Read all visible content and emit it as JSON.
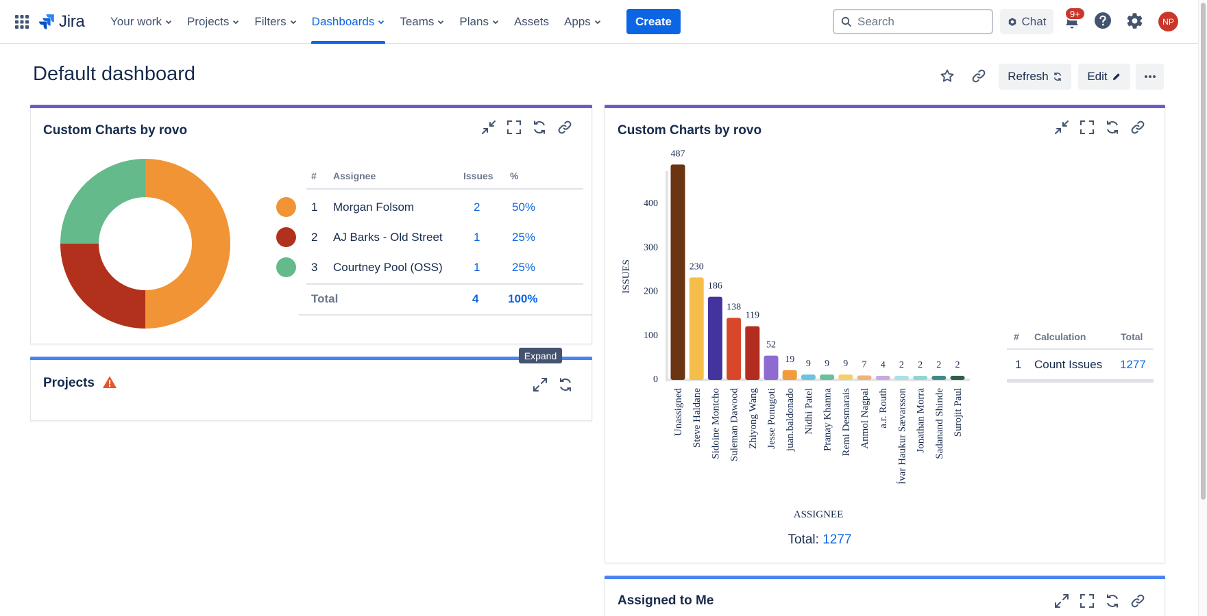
{
  "nav": {
    "logo": "Jira",
    "items": [
      {
        "label": "Your work",
        "chevron": true
      },
      {
        "label": "Projects",
        "chevron": true
      },
      {
        "label": "Filters",
        "chevron": true
      },
      {
        "label": "Dashboards",
        "chevron": true,
        "active": true
      },
      {
        "label": "Teams",
        "chevron": true
      },
      {
        "label": "Plans",
        "chevron": true
      },
      {
        "label": "Assets",
        "chevron": false
      },
      {
        "label": "Apps",
        "chevron": true
      }
    ],
    "create_label": "Create",
    "search_placeholder": "Search",
    "chat_label": "Chat",
    "notification_badge": "9+",
    "avatar_initials": "NP"
  },
  "page": {
    "title": "Default dashboard",
    "refresh_label": "Refresh",
    "edit_label": "Edit"
  },
  "gadget_donut": {
    "title": "Custom Charts by rovo",
    "headers": {
      "num": "#",
      "assignee": "Assignee",
      "issues": "Issues",
      "pct": "%"
    },
    "rows": [
      {
        "num": "1",
        "assignee": "Morgan Folsom",
        "issues": "2",
        "pct": "50%",
        "color": "#f09436"
      },
      {
        "num": "2",
        "assignee": "AJ Barks - Old Street",
        "issues": "1",
        "pct": "25%",
        "color": "#b1311c"
      },
      {
        "num": "3",
        "assignee": "Courtney Pool (OSS)",
        "issues": "1",
        "pct": "25%",
        "color": "#64ba8a"
      }
    ],
    "total_label": "Total",
    "total_issues": "4",
    "total_pct": "100%"
  },
  "gadget_projects": {
    "title": "Projects",
    "tooltip": "Expand"
  },
  "gadget_bars": {
    "title": "Custom Charts by rovo",
    "calc_headers": {
      "num": "#",
      "calc": "Calculation",
      "total": "Total"
    },
    "calc_row": {
      "num": "1",
      "calc": "Count Issues",
      "total": "1277"
    },
    "total_label": "Total:",
    "total_value": "1277"
  },
  "gadget_assigned": {
    "title": "Assigned to Me"
  },
  "chart_data": [
    {
      "type": "pie",
      "title": "",
      "categories": [
        "Morgan Folsom",
        "AJ Barks - Old Street",
        "Courtney Pool (OSS)"
      ],
      "values": [
        2,
        1,
        1
      ],
      "colors": [
        "#f09436",
        "#b1311c",
        "#64ba8a"
      ]
    },
    {
      "type": "bar",
      "title": "",
      "xlabel": "ASSIGNEE",
      "ylabel": "ISSUES",
      "ylim": [
        0,
        500
      ],
      "yticks": [
        0,
        100,
        200,
        300,
        400
      ],
      "categories": [
        "Unassigned",
        "Steve Haldane",
        "Sidoine Montcho",
        "Suleman Dawood",
        "Zhiyong Wang",
        "Jesse Ponugoti",
        "juan.baldonado",
        "Nidhi Patel",
        "Pranay Khanna",
        "Remi Desmarais",
        "Anmol Nagpal",
        "a.r. Routh",
        "Ívar Haukur Sævarsson",
        "Jonathan Morra",
        "Sadanand Shinde",
        "Surojit Paul"
      ],
      "values": [
        487,
        230,
        186,
        138,
        119,
        52,
        19,
        9,
        9,
        9,
        7,
        4,
        2,
        2,
        2,
        2
      ],
      "colors": [
        "#6b3513",
        "#f5be4a",
        "#43339c",
        "#d9472a",
        "#b22d1f",
        "#8e6bd0",
        "#f39a3b",
        "#6cc3e0",
        "#6bc19a",
        "#f5cf6a",
        "#f3b27a",
        "#c9a9e0",
        "#a7e2e8",
        "#8fd6cf",
        "#3f8a8a",
        "#2f5c4a"
      ]
    }
  ]
}
